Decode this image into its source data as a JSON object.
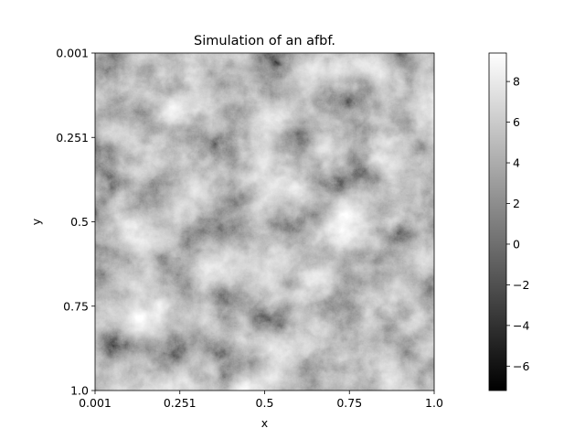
{
  "chart_data": {
    "type": "heatmap",
    "title": "Simulation of an afbf.",
    "xlabel": "x",
    "ylabel": "y",
    "x_ticks": [
      "0.001",
      "0.251",
      "0.5",
      "0.75",
      "1.0"
    ],
    "y_ticks": [
      "0.001",
      "0.251",
      "0.5",
      "0.75",
      "1.0"
    ],
    "x_range": [
      0.001,
      1.0
    ],
    "y_range": [
      0.001,
      1.0
    ],
    "y_axis_inverted": true,
    "colormap": "gray",
    "color_range": [
      -7.2,
      9.4
    ],
    "colorbar_ticks": [
      "8",
      "6",
      "4",
      "2",
      "0",
      "−2",
      "−4",
      "−6"
    ],
    "colorbar_tick_values": [
      8,
      6,
      4,
      2,
      0,
      -2,
      -4,
      -6
    ],
    "grid": false,
    "colors": {
      "field_dark": "#2a2a2a",
      "field_light": "#d0d0d0",
      "colorbar_low": "#000000",
      "colorbar_high": "#ffffff",
      "frame": "#000000"
    }
  }
}
